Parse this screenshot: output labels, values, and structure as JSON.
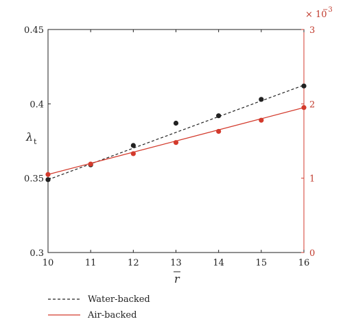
{
  "chart_data": {
    "type": "scatter",
    "xlabel": "r",
    "ylabel": "λ",
    "ylabel_sub": "t",
    "x": [
      10,
      11,
      12,
      13,
      14,
      15,
      16
    ],
    "xlim": [
      10,
      16
    ],
    "xticks": [
      "10",
      "11",
      "12",
      "13",
      "14",
      "15",
      "16"
    ],
    "ylim_left": [
      0.3,
      0.45
    ],
    "yticks_left": [
      "0.3",
      "0.35",
      "0.4",
      "0.45"
    ],
    "ylim_right": [
      0,
      3
    ],
    "yticks_right": [
      "0",
      "1",
      "2",
      "3"
    ],
    "right_axis_multiplier": "× 10",
    "right_axis_exponent": "−3",
    "grid": false,
    "legend_position": "bottom-left",
    "series": [
      {
        "name": "Water-backed",
        "axis": "left",
        "points": [
          0.349,
          0.359,
          0.372,
          0.387,
          0.392,
          0.403,
          0.412
        ],
        "fit_line": [
          0.349,
          0.3596,
          0.3702,
          0.3808,
          0.3914,
          0.402,
          0.4126
        ],
        "line_style": "dashed",
        "color": "#222222"
      },
      {
        "name": "Air-backed",
        "axis": "right",
        "points": [
          1.05,
          1.19,
          1.33,
          1.48,
          1.63,
          1.78,
          1.95
        ],
        "fit_line": [
          1.05,
          1.2,
          1.35,
          1.5,
          1.65,
          1.8,
          1.95
        ],
        "line_style": "solid",
        "color": "#d33a2c"
      }
    ]
  }
}
